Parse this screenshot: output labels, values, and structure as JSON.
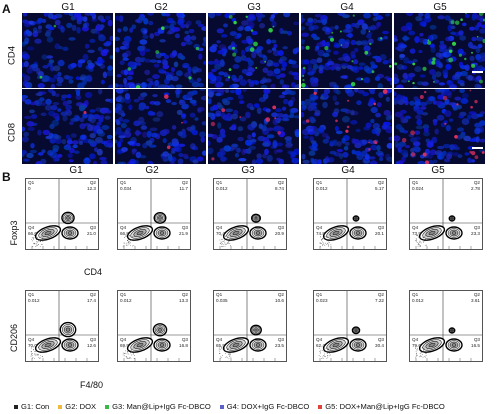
{
  "panels": {
    "a_label": "A",
    "b_label": "B"
  },
  "groups": [
    "G1",
    "G2",
    "G3",
    "G4",
    "G5"
  ],
  "micro_rows": [
    "CD4",
    "CD8"
  ],
  "flow_rows": [
    {
      "y_label": "Foxp3",
      "x_label": "CD4",
      "plots": [
        {
          "G1": "G1",
          "q1": "0",
          "q2": "12.3",
          "q3": "21.0",
          "q4": "66.6",
          "q1v": "0",
          "q2v": "12.3",
          "q3v": "21.0",
          "q4v": "66.6"
        },
        {
          "q1v": "0.034",
          "q2v": "11.7",
          "q3v": "21.9",
          "q4v": "66.8"
        },
        {
          "q1v": "0.012",
          "q2v": "8.74",
          "q3v": "20.9",
          "q4v": "70.4"
        },
        {
          "q1v": "0.012",
          "q2v": "5.17",
          "q3v": "20.1",
          "q4v": "74.8"
        },
        {
          "q1v": "0.024",
          "q2v": "2.78",
          "q3v": "23.3",
          "q4v": "73.9"
        }
      ]
    },
    {
      "y_label": "CD206",
      "x_label": "F4/80",
      "plots": [
        {
          "q1v": "0.012",
          "q2v": "17.4",
          "q3v": "12.6",
          "q4v": "70.0"
        },
        {
          "q1v": "0.012",
          "q2v": "13.3",
          "q3v": "16.8",
          "q4v": "69.9"
        },
        {
          "q1v": "0.035",
          "q2v": "10.6",
          "q3v": "23.5",
          "q4v": "65.9"
        },
        {
          "q1v": "0.023",
          "q2v": "7.22",
          "q3v": "30.4",
          "q4v": "62.4"
        },
        {
          "q1v": "0.012",
          "q2v": "3.61",
          "q3v": "16.5",
          "q4v": "79.6"
        }
      ]
    }
  ],
  "quadrant_names": {
    "q1": "Q1",
    "q2": "Q2",
    "q3": "Q3",
    "q4": "Q4"
  },
  "legend": [
    {
      "label": "G1: Con",
      "color": "#222222"
    },
    {
      "label": "G2: DOX",
      "color": "#f0b93a"
    },
    {
      "label": "G3: Man@Lip+IgG Fc-DBCO",
      "color": "#38b84a"
    },
    {
      "label": "G4: DOX+IgG Fc-DBCO",
      "color": "#5b63c9"
    },
    {
      "label": "G5: DOX+Man@Lip+IgG Fc-DBCO",
      "color": "#e0413a"
    }
  ],
  "colors": {
    "nucleus": "#1d2bd0",
    "cd4": "#30d048",
    "cd8": "#e03060",
    "background": "#060a30"
  }
}
